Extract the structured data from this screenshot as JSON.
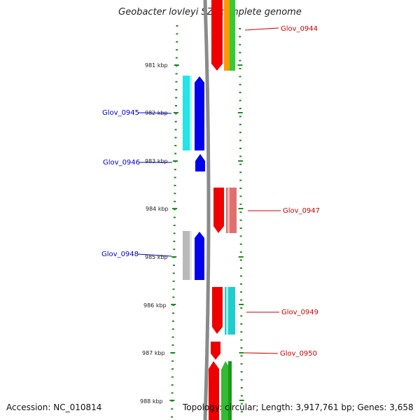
{
  "title": "Geobacter lovleyi SZ, complete genome",
  "footer": {
    "accession": "Accession: NC_010814",
    "summary": "Topology: circular; Length: 3,917,761 bp; Genes: 3,658"
  },
  "colors": {
    "backbone": "#888888",
    "dot_track": "#228b22",
    "left_label": "#0000cc",
    "right_label": "#cc0000"
  },
  "ticks": [
    "981 kbp",
    "982 kbp",
    "983 kbp",
    "984 kbp",
    "985 kbp",
    "986 kbp",
    "987 kbp",
    "988 kbp"
  ],
  "left_genes": [
    {
      "label": "Glov_0945"
    },
    {
      "label": "Glov_0946"
    },
    {
      "label": "Glov_0948"
    }
  ],
  "right_genes": [
    {
      "label": "Glov_0944"
    },
    {
      "label": "Glov_0947"
    },
    {
      "label": "Glov_0949"
    },
    {
      "label": "Glov_0950"
    }
  ]
}
